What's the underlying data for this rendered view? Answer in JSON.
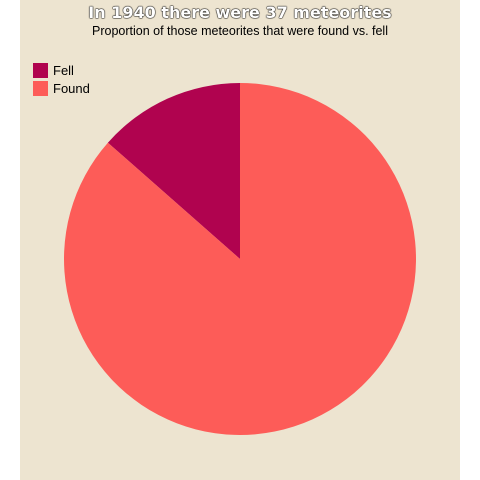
{
  "chart_data": {
    "type": "pie",
    "title": "In 1940 there were 37 meteorites",
    "subtitle": "Proportion of those meteorites that were found vs. fell",
    "legend_position": "top-left",
    "background_color": "#ede4d0",
    "slices": [
      {
        "label": "Fell",
        "value": 5,
        "color": "#b0034f"
      },
      {
        "label": "Found",
        "value": 32,
        "color": "#fd5c58"
      }
    ]
  }
}
